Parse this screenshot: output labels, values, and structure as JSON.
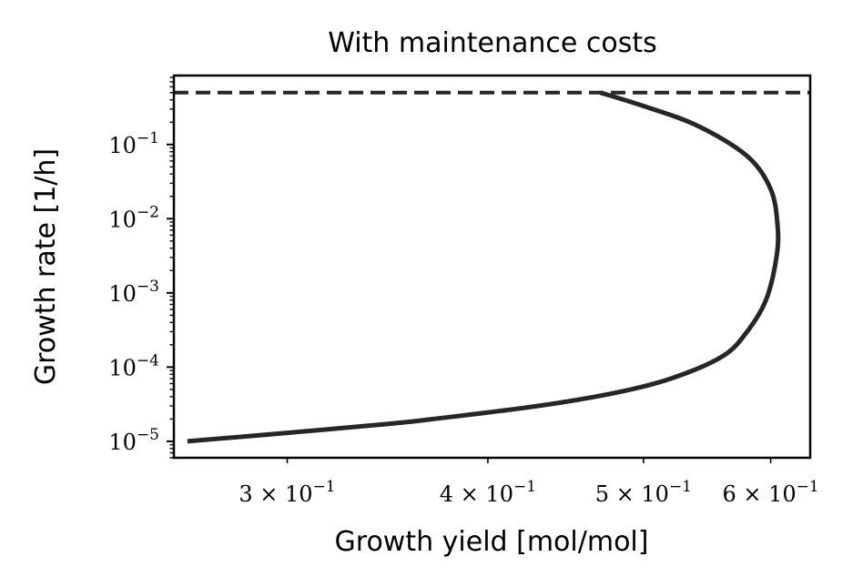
{
  "chart_data": {
    "type": "line",
    "title": "With maintenance costs",
    "xlabel": "Growth yield [mol/mol]",
    "ylabel": "Growth rate [1/h]",
    "xscale": "log",
    "yscale": "log",
    "xlim": [
      0.255,
      0.635
    ],
    "ylim": [
      6e-06,
      0.85
    ],
    "x_ticks": [
      {
        "value": 0.3,
        "mantissa": "3",
        "exp": "−1"
      },
      {
        "value": 0.4,
        "mantissa": "4",
        "exp": "−1"
      },
      {
        "value": 0.5,
        "mantissa": "5",
        "exp": "−1"
      },
      {
        "value": 0.6,
        "mantissa": "6",
        "exp": "−1"
      }
    ],
    "y_ticks": [
      {
        "value": 1e-05,
        "exp": "−5"
      },
      {
        "value": 0.0001,
        "exp": "−4"
      },
      {
        "value": 0.001,
        "exp": "−3"
      },
      {
        "value": 0.01,
        "exp": "−2"
      },
      {
        "value": 0.1,
        "exp": "−1"
      }
    ],
    "series": [
      {
        "style": "solid",
        "color": "#262626",
        "x": [
          0.26,
          0.3,
          0.35,
          0.37,
          0.43,
          0.48,
          0.52,
          0.56,
          0.58,
          0.596,
          0.605,
          0.606,
          0.6,
          0.58,
          0.54,
          0.5,
          0.47
        ],
        "y": [
          1e-05,
          1.3e-05,
          1.75e-05,
          2e-05,
          3e-05,
          4.5e-05,
          7e-05,
          0.00014,
          0.0003,
          0.0008,
          0.003,
          0.008,
          0.025,
          0.07,
          0.18,
          0.33,
          0.5
        ]
      },
      {
        "style": "dashed",
        "color": "#262626",
        "y_constant": 0.5
      }
    ],
    "grid": false,
    "legend": "none"
  }
}
